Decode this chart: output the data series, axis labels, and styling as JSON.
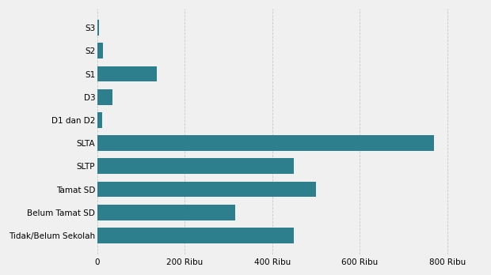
{
  "categories": [
    "Tidak/Belum Sekolah",
    "Belum Tamat SD",
    "Tamat SD",
    "SLTP",
    "SLTA",
    "D1 dan D2",
    "D3",
    "S1",
    "S2",
    "S3"
  ],
  "values": [
    450000,
    315000,
    500000,
    450000,
    770000,
    10000,
    35000,
    135000,
    12000,
    3000
  ],
  "bar_color": "#2e7f8e",
  "background_color": "#f0f0f0",
  "xlim": [
    0,
    880000
  ],
  "xticks": [
    0,
    200000,
    400000,
    600000,
    800000
  ],
  "xtick_labels": [
    "0",
    "200 Ribu",
    "400 Ribu",
    "600 Ribu",
    "800 Ribu"
  ],
  "tick_fontsize": 7.5,
  "label_fontsize": 7.5,
  "grid_color": "#c8c8c8",
  "bar_height": 0.68
}
